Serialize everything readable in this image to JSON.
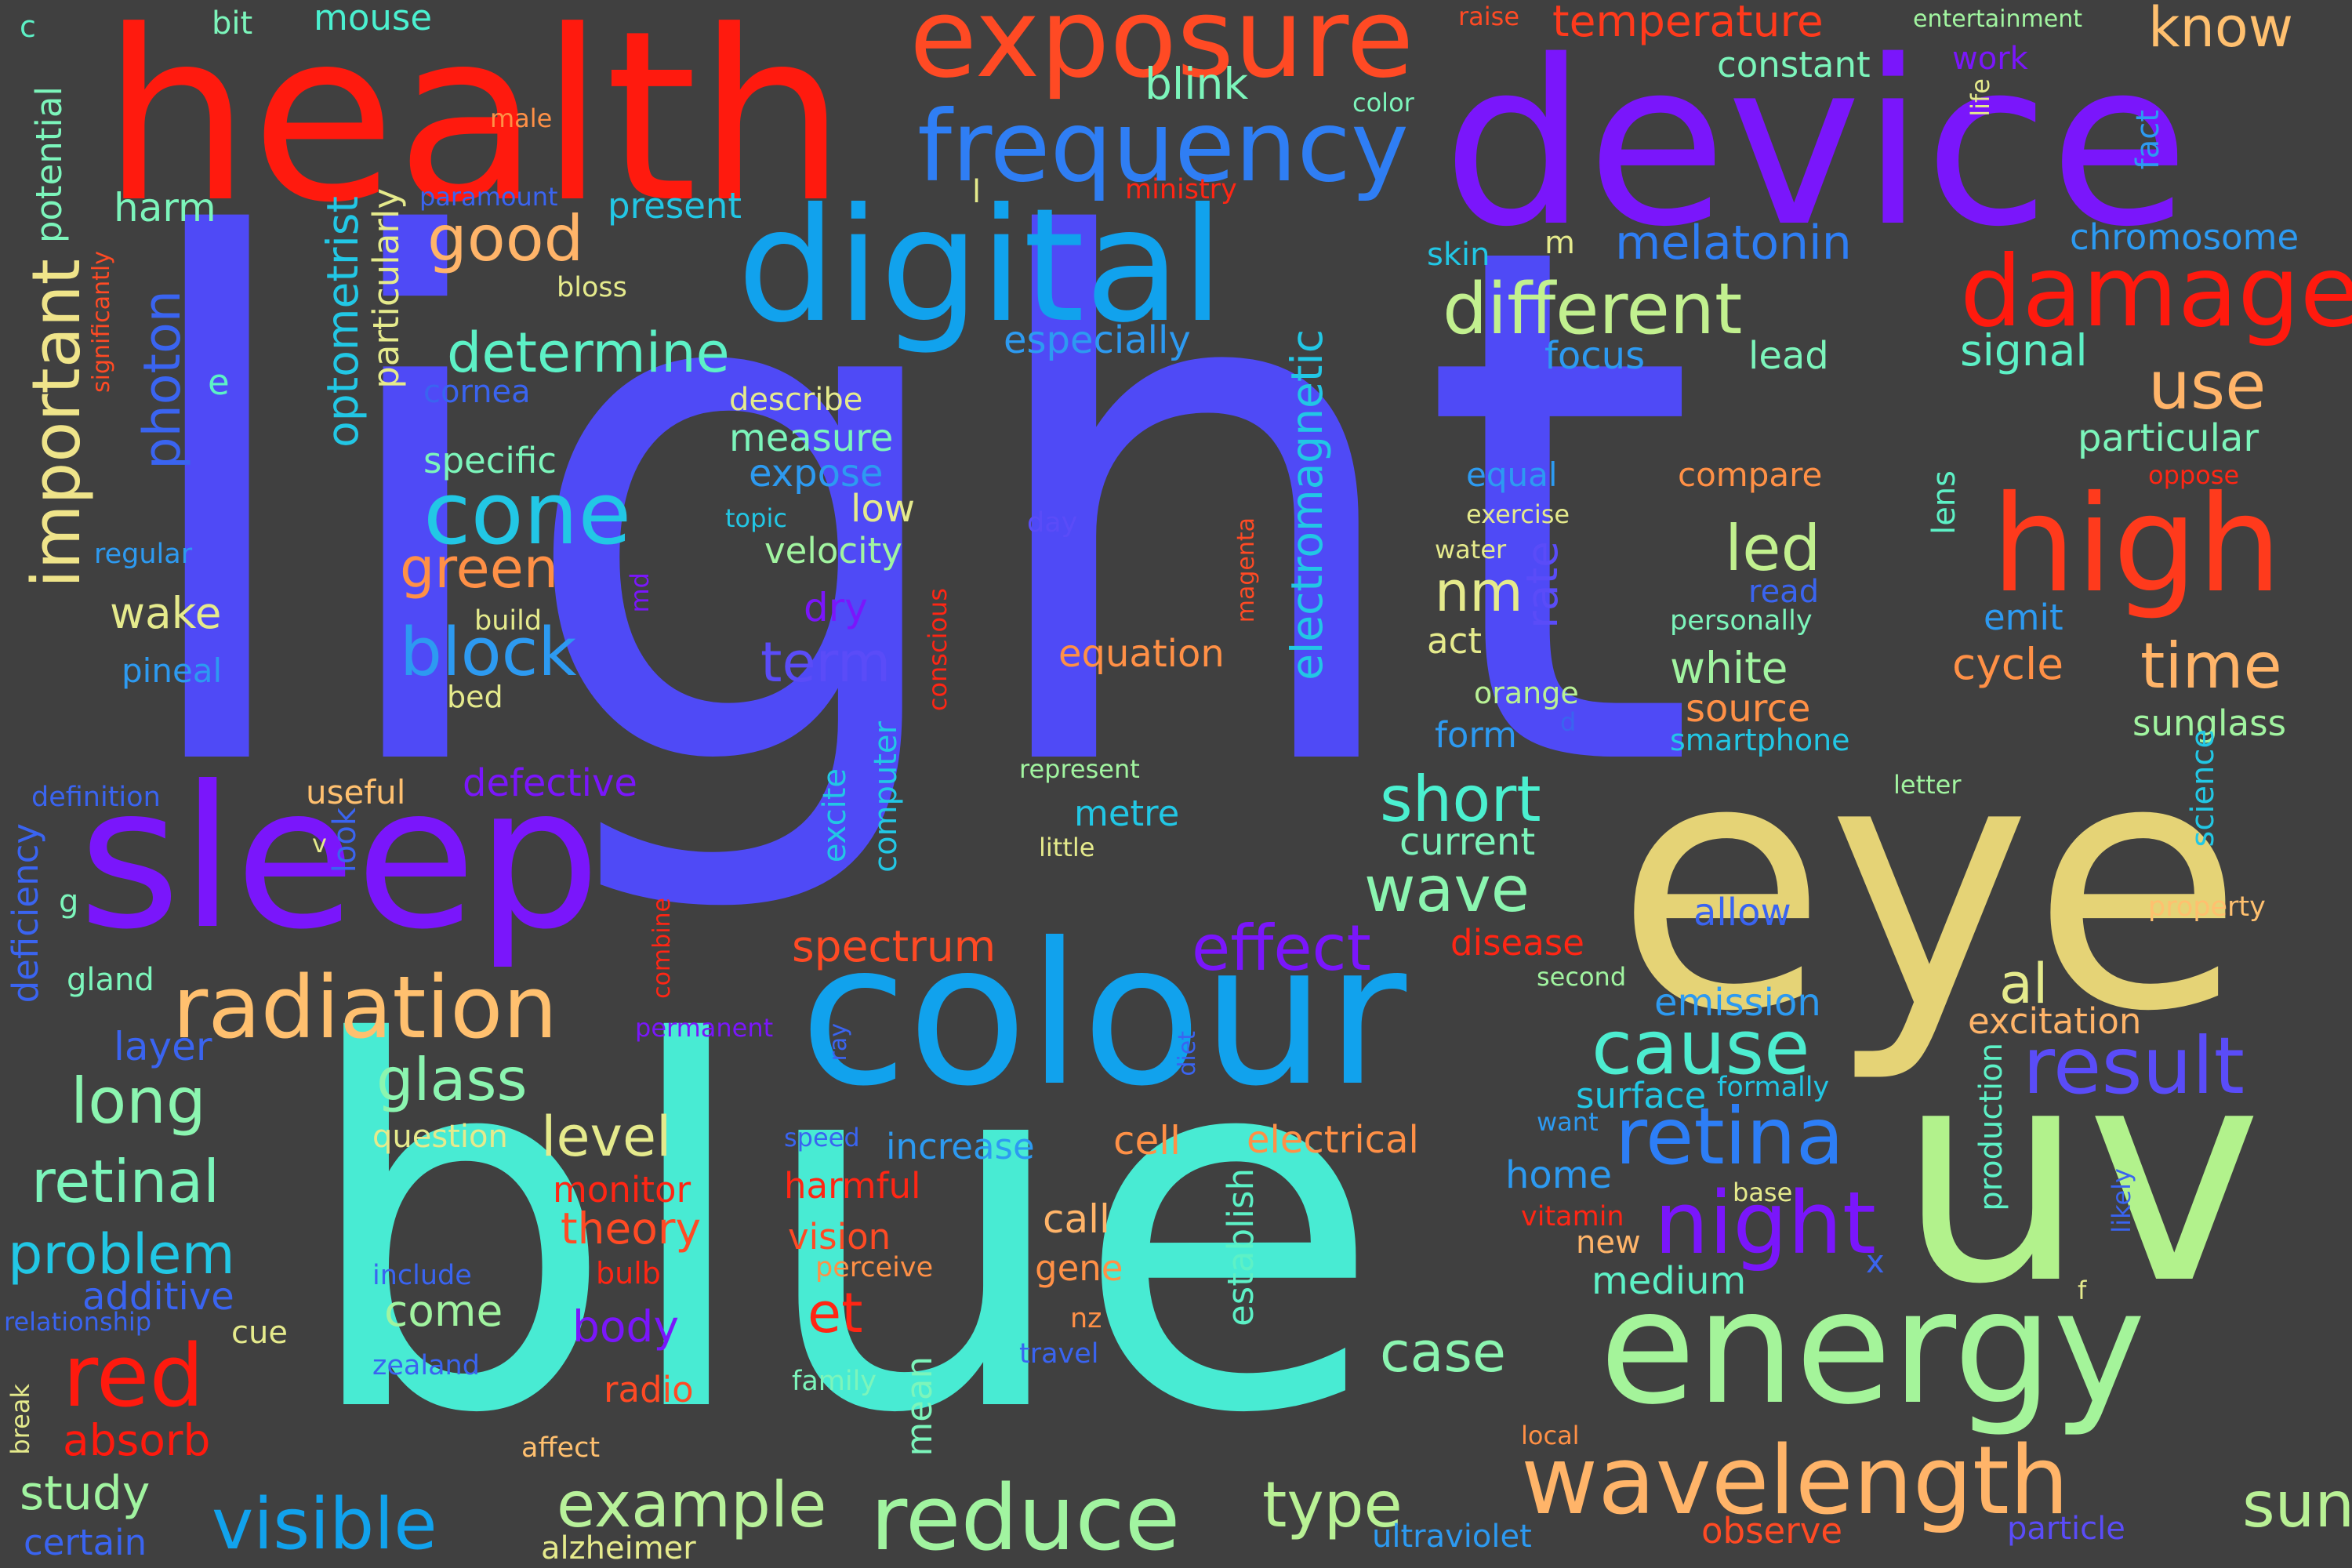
{
  "word_cloud": {
    "background": "#404040",
    "words": [
      {
        "text": "light",
        "color": "#4F4AF6"
      },
      {
        "text": "blue",
        "color": "#48EBD3"
      },
      {
        "text": "eye",
        "color": "#E5D376"
      },
      {
        "text": "uv",
        "color": "#B2F28C"
      },
      {
        "text": "health",
        "color": "#FF1A0E"
      },
      {
        "text": "device",
        "color": "#7A16FB"
      },
      {
        "text": "colour",
        "color": "#11A2ED"
      },
      {
        "text": "sleep",
        "color": "#7A16FB"
      },
      {
        "text": "energy",
        "color": "#A4F49A"
      },
      {
        "text": "digital",
        "color": "#11A2ED"
      },
      {
        "text": "exposure",
        "color": "#FF4A24"
      },
      {
        "text": "frequency",
        "color": "#2F7EF4"
      },
      {
        "text": "damage",
        "color": "#FF1A0E"
      },
      {
        "text": "high",
        "color": "#FF3A1C"
      },
      {
        "text": "wavelength",
        "color": "#FFB469"
      },
      {
        "text": "radiation",
        "color": "#FFC06F"
      },
      {
        "text": "result",
        "color": "#5A4CF8"
      },
      {
        "text": "reduce",
        "color": "#A1F4A0"
      },
      {
        "text": "retina",
        "color": "#2D7EF6"
      },
      {
        "text": "different",
        "color": "#C2F08F"
      },
      {
        "text": "cone",
        "color": "#22C7E5"
      },
      {
        "text": "important",
        "color": "#EFE48A"
      },
      {
        "text": "cause",
        "color": "#4DEDD0"
      },
      {
        "text": "night",
        "color": "#7A16FB"
      },
      {
        "text": "time",
        "color": "#FFB469"
      },
      {
        "text": "visible",
        "color": "#11A2ED"
      },
      {
        "text": "example",
        "color": "#B8F19A"
      },
      {
        "text": "type",
        "color": "#B9F195"
      },
      {
        "text": "sun",
        "color": "#B9F195"
      },
      {
        "text": "effect",
        "color": "#7A16FB"
      },
      {
        "text": "block",
        "color": "#2D9AF1"
      },
      {
        "text": "short",
        "color": "#4BF0D0"
      },
      {
        "text": "wave",
        "color": "#8BF5B0"
      },
      {
        "text": "glass",
        "color": "#8BF5B0"
      },
      {
        "text": "long",
        "color": "#8BF5B0"
      },
      {
        "text": "retinal",
        "color": "#7CF5BB"
      },
      {
        "text": "problem",
        "color": "#22C7E5"
      },
      {
        "text": "red",
        "color": "#FF1A0E"
      },
      {
        "text": "use",
        "color": "#FFB469"
      },
      {
        "text": "good",
        "color": "#FFB469"
      },
      {
        "text": "determine",
        "color": "#5DF1C6"
      },
      {
        "text": "green",
        "color": "#FF9046"
      },
      {
        "text": "term",
        "color": "#5A4CF8"
      },
      {
        "text": "led",
        "color": "#C2F08F"
      },
      {
        "text": "nm",
        "color": "#E5EA8C"
      },
      {
        "text": "case",
        "color": "#8BF5B0"
      },
      {
        "text": "level",
        "color": "#E5EA8C"
      },
      {
        "text": "et",
        "color": "#FF2614"
      },
      {
        "text": "spectrum",
        "color": "#FF4A24"
      },
      {
        "text": "al",
        "color": "#E5EA8C"
      },
      {
        "text": "melatonin",
        "color": "#2F7EF4"
      },
      {
        "text": "electromagnetic",
        "color": "#22C7E5"
      },
      {
        "text": "photon",
        "color": "#3A64F0"
      },
      {
        "text": "optometrist",
        "color": "#22C7E5"
      },
      {
        "text": "particularly",
        "color": "#E5EA8C"
      },
      {
        "text": "chromosome",
        "color": "#2D9AF1"
      },
      {
        "text": "signal",
        "color": "#5DF1C6"
      },
      {
        "text": "particular",
        "color": "#7CF5BB"
      },
      {
        "text": "sunglass",
        "color": "#A1F4A0"
      },
      {
        "text": "cycle",
        "color": "#FF9046"
      },
      {
        "text": "white",
        "color": "#A1F4A0"
      },
      {
        "text": "source",
        "color": "#FF9046"
      },
      {
        "text": "wake",
        "color": "#E5EA8C"
      },
      {
        "text": "study",
        "color": "#A1F4A0"
      },
      {
        "text": "absorb",
        "color": "#FF1A0E"
      },
      {
        "text": "observe",
        "color": "#FF4A24"
      },
      {
        "text": "ultraviolet",
        "color": "#2D9AF1"
      },
      {
        "text": "particle",
        "color": "#5A4CF8"
      },
      {
        "text": "know",
        "color": "#FFC06F"
      },
      {
        "text": "temperature",
        "color": "#FF3A1C"
      },
      {
        "text": "constant",
        "color": "#7CF5BB"
      },
      {
        "text": "work",
        "color": "#7A16FB"
      },
      {
        "text": "entertainment",
        "color": "#A1F4A0"
      },
      {
        "text": "blink",
        "color": "#7CF5BB"
      },
      {
        "text": "mouse",
        "color": "#4BF0D0"
      },
      {
        "text": "bit",
        "color": "#7CF5BB"
      },
      {
        "text": "harm",
        "color": "#7CF5BB"
      },
      {
        "text": "present",
        "color": "#22C7E5"
      },
      {
        "text": "especially",
        "color": "#2D9AF1"
      },
      {
        "text": "focus",
        "color": "#2D9AF1"
      },
      {
        "text": "lead",
        "color": "#7CF5BB"
      },
      {
        "text": "skin",
        "color": "#22C7E5"
      },
      {
        "text": "measure",
        "color": "#7CF5BB"
      },
      {
        "text": "expose",
        "color": "#2D9AF1"
      },
      {
        "text": "describe",
        "color": "#E5EA8C"
      },
      {
        "text": "specific",
        "color": "#7CF5BB"
      },
      {
        "text": "cornea",
        "color": "#3A64F0"
      },
      {
        "text": "velocity",
        "color": "#A1F4A0"
      },
      {
        "text": "low",
        "color": "#E5EA8C"
      },
      {
        "text": "compare",
        "color": "#FF9046"
      },
      {
        "text": "equal",
        "color": "#2D9AF1"
      },
      {
        "text": "exercise",
        "color": "#E5EA8C"
      },
      {
        "text": "rate",
        "color": "#5A4CF8"
      },
      {
        "text": "equation",
        "color": "#FF9046"
      },
      {
        "text": "act",
        "color": "#E5EA8C"
      },
      {
        "text": "form",
        "color": "#2D9AF1"
      },
      {
        "text": "orange",
        "color": "#B9F195"
      },
      {
        "text": "read",
        "color": "#3A64F0"
      },
      {
        "text": "personally",
        "color": "#7CF5BB"
      },
      {
        "text": "emit",
        "color": "#2D9AF1"
      },
      {
        "text": "smartphone",
        "color": "#22C7E5"
      },
      {
        "text": "current",
        "color": "#7CF5BB"
      },
      {
        "text": "metre",
        "color": "#22C7E5"
      },
      {
        "text": "represent",
        "color": "#A1F4A0"
      },
      {
        "text": "little",
        "color": "#E5EA8C"
      },
      {
        "text": "defective",
        "color": "#7A16FB"
      },
      {
        "text": "useful",
        "color": "#FFC06F"
      },
      {
        "text": "look",
        "color": "#3A64F0"
      },
      {
        "text": "excite",
        "color": "#22C7E5"
      },
      {
        "text": "computer",
        "color": "#22C7E5"
      },
      {
        "text": "dry",
        "color": "#7A16FB"
      },
      {
        "text": "disease",
        "color": "#FF2614"
      },
      {
        "text": "allow",
        "color": "#3A64F0"
      },
      {
        "text": "property",
        "color": "#FFC06F"
      },
      {
        "text": "science",
        "color": "#22C7E5"
      },
      {
        "text": "emission",
        "color": "#2D9AF1"
      },
      {
        "text": "excitation",
        "color": "#FFB469"
      },
      {
        "text": "surface",
        "color": "#22C7E5"
      },
      {
        "text": "formally",
        "color": "#22C7E5"
      },
      {
        "text": "production",
        "color": "#5DF1C6"
      },
      {
        "text": "likely",
        "color": "#3A64F0"
      },
      {
        "text": "home",
        "color": "#2D9AF1"
      },
      {
        "text": "medium",
        "color": "#5DF1C6"
      },
      {
        "text": "new",
        "color": "#FFB469"
      },
      {
        "text": "vitamin",
        "color": "#FF2614"
      },
      {
        "text": "base",
        "color": "#E5EA8C"
      },
      {
        "text": "want",
        "color": "#2D9AF1"
      },
      {
        "text": "electrical",
        "color": "#FF9046"
      },
      {
        "text": "cell",
        "color": "#FF9046"
      },
      {
        "text": "increase",
        "color": "#2D9AF1"
      },
      {
        "text": "establish",
        "color": "#5DF1C6"
      },
      {
        "text": "call",
        "color": "#FFB469"
      },
      {
        "text": "gene",
        "color": "#FF9046"
      },
      {
        "text": "perceive",
        "color": "#FF9046"
      },
      {
        "text": "nz",
        "color": "#FF9046"
      },
      {
        "text": "travel",
        "color": "#3A64F0"
      },
      {
        "text": "family",
        "color": "#7CF5BB"
      },
      {
        "text": "mean",
        "color": "#7CF5BB"
      },
      {
        "text": "radio",
        "color": "#FF4A24"
      },
      {
        "text": "body",
        "color": "#7A16FB"
      },
      {
        "text": "theory",
        "color": "#FF4A24"
      },
      {
        "text": "monitor",
        "color": "#FF2614"
      },
      {
        "text": "harmful",
        "color": "#FF2614"
      },
      {
        "text": "vision",
        "color": "#FF4A24"
      },
      {
        "text": "bulb",
        "color": "#FF2614"
      },
      {
        "text": "come",
        "color": "#A1F4A0"
      },
      {
        "text": "question",
        "color": "#E5EA8C"
      },
      {
        "text": "speed",
        "color": "#3A64F0"
      },
      {
        "text": "ray",
        "color": "#3A64F0"
      },
      {
        "text": "diet",
        "color": "#3A64F0"
      },
      {
        "text": "second",
        "color": "#A1F4A0"
      },
      {
        "text": "local",
        "color": "#FF9046"
      },
      {
        "text": "x",
        "color": "#3A64F0"
      },
      {
        "text": "f",
        "color": "#E5EA8C"
      },
      {
        "text": "layer",
        "color": "#3A64F0"
      },
      {
        "text": "additive",
        "color": "#3A64F0"
      },
      {
        "text": "include",
        "color": "#3A64F0"
      },
      {
        "text": "relationship",
        "color": "#3A64F0"
      },
      {
        "text": "cue",
        "color": "#E5EA8C"
      },
      {
        "text": "zealand",
        "color": "#3A64F0"
      },
      {
        "text": "break",
        "color": "#E5EA8C"
      },
      {
        "text": "affect",
        "color": "#FFC06F"
      },
      {
        "text": "certain",
        "color": "#3A64F0"
      },
      {
        "text": "alzheimer",
        "color": "#E5EA8C"
      },
      {
        "text": "gland",
        "color": "#7CF5BB"
      },
      {
        "text": "deficiency",
        "color": "#3A64F0"
      },
      {
        "text": "definition",
        "color": "#3A64F0"
      },
      {
        "text": "g",
        "color": "#7CF5BB"
      },
      {
        "text": "v",
        "color": "#E5EA8C"
      },
      {
        "text": "pineal",
        "color": "#2D9AF1"
      },
      {
        "text": "bed",
        "color": "#E5EA8C"
      },
      {
        "text": "build",
        "color": "#E5EA8C"
      },
      {
        "text": "md",
        "color": "#7A16FB"
      },
      {
        "text": "regular",
        "color": "#2D9AF1"
      },
      {
        "text": "topic",
        "color": "#22C7E5"
      },
      {
        "text": "day",
        "color": "#5A4CF8"
      },
      {
        "text": "e",
        "color": "#5DF1C6"
      },
      {
        "text": "bloss",
        "color": "#E5EA8C"
      },
      {
        "text": "l",
        "color": "#E5EA8C"
      },
      {
        "text": "m",
        "color": "#E5EA8C"
      },
      {
        "text": "ministry",
        "color": "#FF2614"
      },
      {
        "text": "paramount",
        "color": "#3A64F0"
      },
      {
        "text": "male",
        "color": "#FF9046"
      },
      {
        "text": "potential",
        "color": "#7CF5BB"
      },
      {
        "text": "significantly",
        "color": "#FF4A24"
      },
      {
        "text": "c",
        "color": "#5DF1C6"
      },
      {
        "text": "raise",
        "color": "#FF4A24"
      },
      {
        "text": "color",
        "color": "#7CF5BB"
      },
      {
        "text": "life",
        "color": "#E5EA8C"
      },
      {
        "text": "fact",
        "color": "#2D9AF1"
      },
      {
        "text": "oppose",
        "color": "#FF2614"
      },
      {
        "text": "lens",
        "color": "#5DF1C6"
      },
      {
        "text": "water",
        "color": "#E5EA8C"
      },
      {
        "text": "magenta",
        "color": "#FF4A24"
      },
      {
        "text": "conscious",
        "color": "#FF2614"
      },
      {
        "text": "d",
        "color": "#3A64F0"
      },
      {
        "text": "letter",
        "color": "#A1F4A0"
      },
      {
        "text": "combine",
        "color": "#FF2614"
      },
      {
        "text": "permanent",
        "color": "#7A16FB"
      }
    ]
  }
}
